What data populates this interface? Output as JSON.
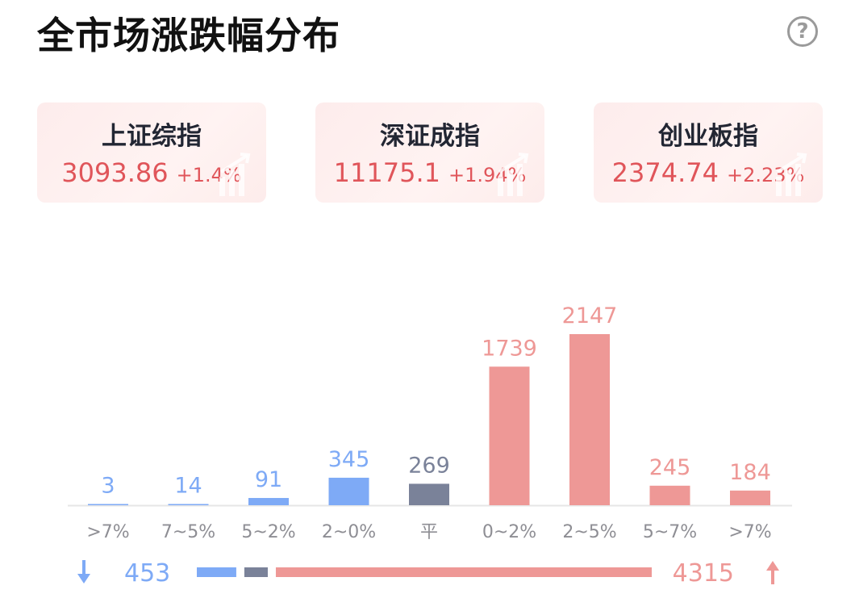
{
  "header": {
    "title": "全市场涨跌幅分布",
    "help_icon": "question-circle-icon",
    "help_glyph": "?"
  },
  "indices": [
    {
      "name": "上证综指",
      "value": "3093.86",
      "change": "+1.4%"
    },
    {
      "name": "深证成指",
      "value": "11175.1",
      "change": "+1.94%"
    },
    {
      "name": "创业板指",
      "value": "2374.74",
      "change": "+2.23%"
    }
  ],
  "colors": {
    "down": "#7eaaf6",
    "flat": "#7a8299",
    "up": "#ee9896",
    "up_text": "#e0555a",
    "axis": "#e6e6e6"
  },
  "chart_data": {
    "type": "bar",
    "categories": [
      ">7%",
      "7~5%",
      "5~2%",
      "2~0%",
      "平",
      "0~2%",
      "2~5%",
      "5~7%",
      ">7%"
    ],
    "values": [
      3,
      14,
      91,
      345,
      269,
      1739,
      2147,
      245,
      184
    ],
    "groups": [
      "down",
      "down",
      "down",
      "down",
      "flat",
      "up",
      "up",
      "up",
      "up"
    ],
    "title": "",
    "xlabel": "",
    "ylabel": "",
    "ylim": [
      0,
      2147
    ],
    "grid": false,
    "summary": {
      "down_total": 453,
      "flat_total": 269,
      "up_total": 4315
    }
  }
}
